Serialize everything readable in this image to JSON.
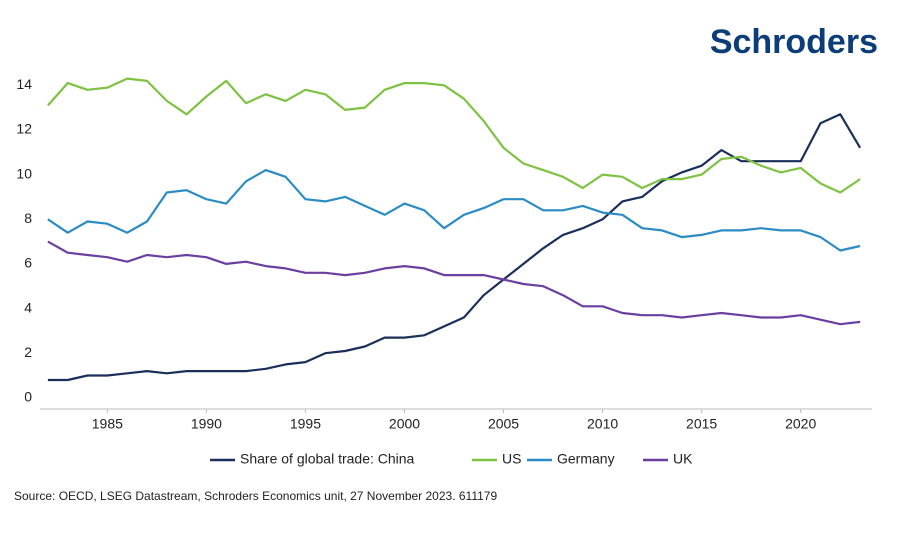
{
  "brand": "Schroders",
  "chart_data": {
    "type": "line",
    "x": [
      1982,
      1983,
      1984,
      1985,
      1986,
      1987,
      1988,
      1989,
      1990,
      1991,
      1992,
      1993,
      1994,
      1995,
      1996,
      1997,
      1998,
      1999,
      2000,
      2001,
      2002,
      2003,
      2004,
      2005,
      2006,
      2007,
      2008,
      2009,
      2010,
      2011,
      2012,
      2013,
      2014,
      2015,
      2016,
      2017,
      2018,
      2019,
      2020,
      2021,
      2022,
      2023
    ],
    "series": [
      {
        "name": "Share of global trade: China",
        "color": "#1b2f5b",
        "values": [
          0.8,
          0.8,
          1.0,
          1.0,
          1.1,
          1.2,
          1.1,
          1.2,
          1.2,
          1.2,
          1.2,
          1.3,
          1.5,
          1.6,
          2.0,
          2.1,
          2.3,
          2.7,
          2.7,
          2.8,
          3.2,
          3.6,
          4.6,
          5.3,
          6.0,
          6.7,
          7.3,
          7.6,
          8.0,
          8.8,
          9.0,
          9.7,
          10.1,
          10.4,
          11.1,
          10.6,
          10.6,
          10.6,
          10.6,
          12.3,
          12.7,
          11.2
        ]
      },
      {
        "name": "US",
        "color": "#7dc242",
        "values": [
          13.1,
          14.1,
          13.8,
          13.9,
          14.3,
          14.2,
          13.3,
          12.7,
          13.5,
          14.2,
          13.2,
          13.6,
          13.3,
          13.8,
          13.6,
          12.9,
          13.0,
          13.8,
          14.1,
          14.1,
          14.0,
          13.4,
          12.4,
          11.2,
          10.5,
          10.2,
          9.9,
          9.4,
          10.0,
          9.9,
          9.4,
          9.8,
          9.8,
          10.0,
          10.7,
          10.8,
          10.4,
          10.1,
          10.3,
          9.6,
          9.2,
          9.8
        ]
      },
      {
        "name": "Germany",
        "color": "#2b8cc4",
        "values": [
          8.0,
          7.4,
          7.9,
          7.8,
          7.4,
          7.9,
          9.2,
          9.3,
          8.9,
          8.7,
          9.7,
          10.2,
          9.9,
          8.9,
          8.8,
          9.0,
          8.6,
          8.2,
          8.7,
          8.4,
          7.6,
          8.2,
          8.5,
          8.9,
          8.9,
          8.4,
          8.4,
          8.6,
          8.3,
          8.2,
          7.6,
          7.5,
          7.2,
          7.3,
          7.5,
          7.5,
          7.6,
          7.5,
          7.5,
          7.2,
          6.6,
          6.8
        ]
      },
      {
        "name": "UK",
        "color": "#6b3fa0",
        "values": [
          7.0,
          6.5,
          6.4,
          6.3,
          6.1,
          6.4,
          6.3,
          6.4,
          6.3,
          6.0,
          6.1,
          5.9,
          5.8,
          5.6,
          5.6,
          5.5,
          5.6,
          5.8,
          5.9,
          5.8,
          5.5,
          5.5,
          5.5,
          5.3,
          5.1,
          5.0,
          4.6,
          4.1,
          4.1,
          3.8,
          3.7,
          3.7,
          3.6,
          3.7,
          3.8,
          3.7,
          3.6,
          3.6,
          3.7,
          3.5,
          3.3,
          3.4
        ]
      }
    ],
    "xlim": [
      1981.6,
      2023.6
    ],
    "xticks": [
      1985,
      1990,
      1995,
      2000,
      2005,
      2010,
      2015,
      2020
    ],
    "ylim": [
      -0.5,
      15
    ],
    "yticks": [
      0,
      2,
      4,
      6,
      8,
      10,
      12,
      14
    ],
    "grid": false,
    "legend": "bottom",
    "source": "Source: OECD, LSEG Datastream, Schroders Economics unit, 27 November 2023. 611179"
  }
}
